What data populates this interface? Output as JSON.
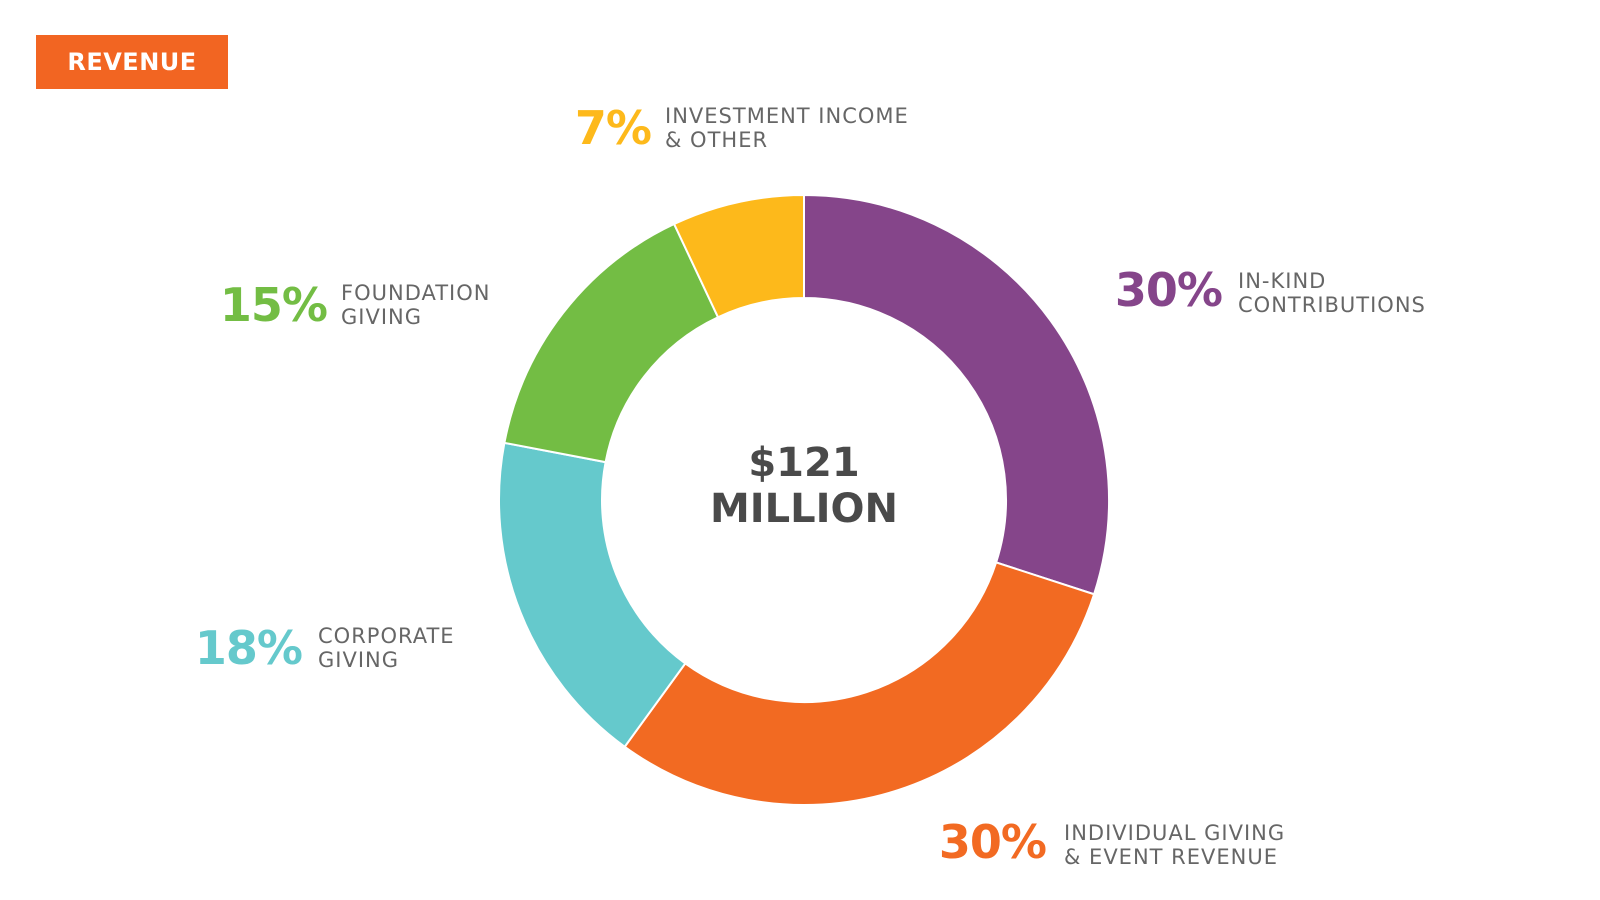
{
  "chart_data": {
    "type": "pie",
    "donut": true,
    "title": "REVENUE",
    "center_label": "$121\nMILLION",
    "categories": [
      "IN-KIND\nCONTRIBUTIONS",
      "INDIVIDUAL GIVING\n& EVENT REVENUE",
      "CORPORATE\nGIVING",
      "FOUNDATION\nGIVING",
      "INVESTMENT INCOME\n& OTHER"
    ],
    "values": [
      30,
      30,
      18,
      15,
      7
    ],
    "value_labels": [
      "30%",
      "30%",
      "18%",
      "15%",
      "7%"
    ],
    "colors": [
      "#85458a",
      "#f26a22",
      "#65c9cc",
      "#73bd44",
      "#fdb91b"
    ]
  }
}
